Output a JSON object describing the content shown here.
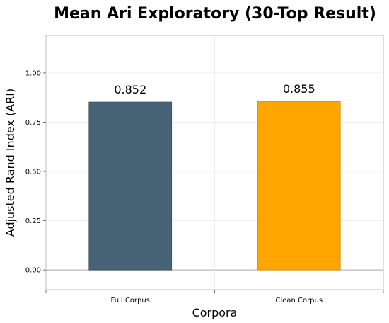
{
  "chart_data": {
    "type": "bar",
    "title": "Mean Ari Exploratory (30-Top Result)",
    "xlabel": "Corpora",
    "ylabel": "Adjusted Rand Index (ARI)",
    "categories": [
      "Full Corpus",
      "Clean Corpus"
    ],
    "values": [
      0.852,
      0.855
    ],
    "data_labels": [
      "0.852",
      "0.855"
    ],
    "colors": [
      "#486376",
      "#FFA500"
    ],
    "ylim": [
      -0.1,
      1.19
    ],
    "yticks": [
      0.0,
      0.25,
      0.5,
      0.75,
      1.0
    ],
    "ytick_labels": [
      "0.00",
      "0.25",
      "0.50",
      "0.75",
      "1.00"
    ],
    "grid": true,
    "legend": "none"
  }
}
